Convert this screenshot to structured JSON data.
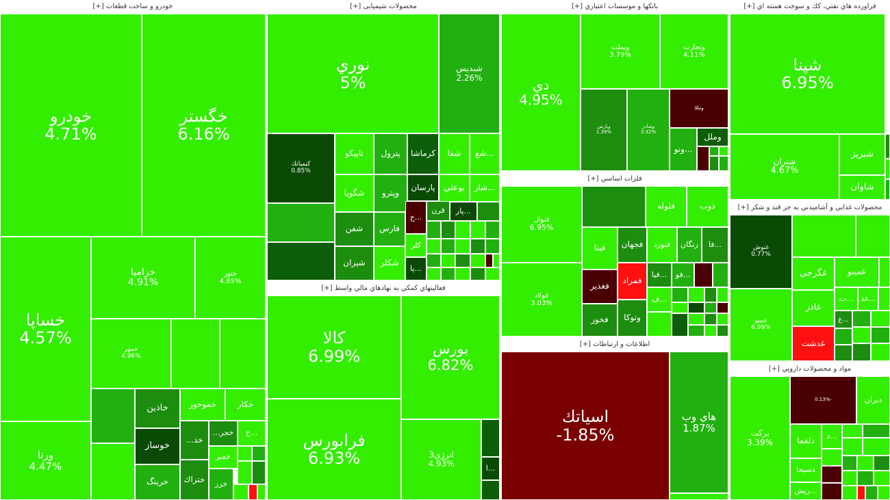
{
  "colors": {
    "bright_green": "#33ee00",
    "mid_green": "#22b010",
    "green": "#1c8d0e",
    "dark_green": "#0d5e08",
    "darkest_green": "#0a4a05",
    "dark_red": "#7a0000",
    "maroon": "#4a0000",
    "red": "#ff1010"
  },
  "sectors": [
    {
      "title": "خودرو و ساخت قطعات [+]",
      "tiles": [
        {
          "symbol": "خودرو",
          "percent": "4.71%"
        },
        {
          "symbol": "خگستر",
          "percent": "6.16%"
        },
        {
          "symbol": "خساپا",
          "percent": "4.57%"
        },
        {
          "symbol": "ورنا",
          "percent": "4.47%"
        },
        {
          "symbol": "خزامیا",
          "percent": "4.91%"
        },
        {
          "symbol": "ختور",
          "percent": "4.85%"
        },
        {
          "symbol": "خمهر",
          "percent": "4.96%"
        },
        {
          "symbol": "خاذین",
          "percent": ""
        },
        {
          "symbol": "خموحور",
          "percent": ""
        },
        {
          "symbol": "خکار",
          "percent": ""
        },
        {
          "symbol": "خوساز",
          "percent": ""
        },
        {
          "symbol": "خد...",
          "percent": ""
        },
        {
          "symbol": "خجر...",
          "percent": ""
        },
        {
          "symbol": "...خ",
          "percent": ""
        },
        {
          "symbol": "خفنر",
          "percent": ""
        },
        {
          "symbol": "خرینگ",
          "percent": ""
        },
        {
          "symbol": "ختراك",
          "percent": ""
        },
        {
          "symbol": "خزر",
          "percent": ""
        }
      ]
    },
    {
      "title": "محصولات شیمیایی [+]",
      "tiles": [
        {
          "symbol": "نوري",
          "percent": "5%"
        },
        {
          "symbol": "شبدیس",
          "percent": "2.26%"
        },
        {
          "symbol": "کیمیاتك",
          "percent": "0.85%"
        },
        {
          "symbol": "تاپیکو",
          "percent": ""
        },
        {
          "symbol": "پترول",
          "percent": ""
        },
        {
          "symbol": "کرماشا",
          "percent": ""
        },
        {
          "symbol": "شفا",
          "percent": ""
        },
        {
          "symbol": "...شغ",
          "percent": ""
        },
        {
          "symbol": "شگویا",
          "percent": ""
        },
        {
          "symbol": "وپترو",
          "percent": ""
        },
        {
          "symbol": "پارسان",
          "percent": ""
        },
        {
          "symbol": "بوعلي",
          "percent": ""
        },
        {
          "symbol": "...شار",
          "percent": ""
        },
        {
          "symbol": "قرن",
          "percent": ""
        },
        {
          "symbol": "...پار",
          "percent": ""
        },
        {
          "symbol": "شفن",
          "percent": ""
        },
        {
          "symbol": "فارس",
          "percent": ""
        },
        {
          "symbol": "...ج",
          "percent": ""
        },
        {
          "symbol": "کلر",
          "percent": ""
        },
        {
          "symbol": "شیران",
          "percent": ""
        },
        {
          "symbol": "شکلر",
          "percent": ""
        },
        {
          "symbol": "...پا",
          "percent": ""
        }
      ]
    },
    {
      "title": "فعالیتهاي کمکي به نهادهاي مالي واسط [+]",
      "tiles": [
        {
          "symbol": "کالا",
          "percent": "6.99%"
        },
        {
          "symbol": "بورس",
          "percent": "6.82%"
        },
        {
          "symbol": "فرابورس",
          "percent": "6.93%"
        },
        {
          "symbol": "انرژي3",
          "percent": "4.93%"
        },
        {
          "symbol": "...ا",
          "percent": ""
        }
      ]
    },
    {
      "title": "بانکها و موسسات اعتباري [+]",
      "tiles": [
        {
          "symbol": "دي",
          "percent": "4.95%"
        },
        {
          "symbol": "وبملت",
          "percent": "3.79%"
        },
        {
          "symbol": "وتجارت",
          "percent": "4.11%"
        },
        {
          "symbol": "وپارس",
          "percent": "1.39%"
        },
        {
          "symbol": "وصادر",
          "percent": "3.32%"
        },
        {
          "symbol": "ومللا",
          "percent": ""
        },
        {
          "symbol": "...ونو",
          "percent": ""
        },
        {
          "symbol": "وملل",
          "percent": ""
        }
      ]
    },
    {
      "title": "فلزات اساسي [+]",
      "tiles": [
        {
          "symbol": "فنوال",
          "percent": "6.95%"
        },
        {
          "symbol": "فولاد",
          "percent": "3.03%"
        },
        {
          "symbol": "فلوله",
          "percent": ""
        },
        {
          "symbol": "ذوب",
          "percent": ""
        },
        {
          "symbol": "فنورد",
          "percent": ""
        },
        {
          "symbol": "زنگان",
          "percent": ""
        },
        {
          "symbol": "...فا",
          "percent": ""
        },
        {
          "symbol": "فجهان",
          "percent": ""
        },
        {
          "symbol": "فيتا",
          "percent": ""
        },
        {
          "symbol": "فمراد",
          "percent": ""
        },
        {
          "symbol": "فغدير",
          "percent": ""
        },
        {
          "symbol": "وتوکا",
          "percent": ""
        },
        {
          "symbol": "فخوز",
          "percent": ""
        },
        {
          "symbol": "...فيا",
          "percent": ""
        },
        {
          "symbol": "...فو",
          "percent": ""
        },
        {
          "symbol": "...ف",
          "percent": ""
        }
      ]
    },
    {
      "title": "اطلاعات و ارتباطات [+]",
      "tiles": [
        {
          "symbol": "اسیاتك",
          "percent": "-1.85%"
        },
        {
          "symbol": "هاي وب",
          "percent": "1.87%"
        }
      ]
    },
    {
      "title": "فراورده هاي نفتي، کك و سوخت هسته اي [+]",
      "tiles": [
        {
          "symbol": "شپنا",
          "percent": "6.95%"
        },
        {
          "symbol": "شتران",
          "percent": "4.67%"
        },
        {
          "symbol": "شبریز",
          "percent": ""
        },
        {
          "symbol": "شاوان",
          "percent": ""
        }
      ]
    },
    {
      "title": "محصولات غذايي و آشاميدني به جز قند و شكر [+]",
      "tiles": [
        {
          "symbol": "غنوش",
          "percent": "0.77%"
        },
        {
          "symbol": "غبینو",
          "percent": "6.99%"
        },
        {
          "symbol": "غگرجي",
          "percent": ""
        },
        {
          "symbol": "غمینو",
          "percent": ""
        },
        {
          "symbol": "غاذر",
          "percent": ""
        },
        {
          "symbol": "غدشت",
          "percent": ""
        },
        {
          "symbol": "...ت",
          "percent": ""
        },
        {
          "symbol": "...غد",
          "percent": ""
        },
        {
          "symbol": "...غ",
          "percent": ""
        }
      ]
    },
    {
      "title": "مواد و محصولات دارويي [+]",
      "tiles": [
        {
          "symbol": "برکت",
          "percent": "3.39%"
        },
        {
          "symbol": "ديران",
          "percent": ""
        },
        {
          "symbol": "دلقما",
          "percent": ""
        },
        {
          "symbol": "دسبحا",
          "percent": ""
        },
        {
          "symbol": "...ريش",
          "percent": ""
        },
        {
          "symbol": "...د",
          "percent": ""
        },
        {
          "symbol": "-0.13%",
          "percent": ""
        }
      ]
    }
  ]
}
